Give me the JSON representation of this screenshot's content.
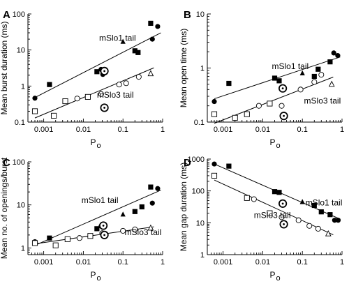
{
  "chart_data": [
    {
      "type": "scatter",
      "panel_letter": "A",
      "xlabel": "P",
      "xlabel_sub": "o",
      "ylabel": "Mean burst duration (ms)",
      "xscale": "log",
      "yscale": "log",
      "xlim": [
        0.0004,
        1
      ],
      "ylim": [
        0.1,
        100
      ],
      "xticks": [
        0.001,
        0.01,
        0.1,
        1
      ],
      "xticklabels": [
        "0.001",
        "0.01",
        "0.1",
        "1"
      ],
      "yticks": [
        0.1,
        1,
        10,
        100
      ],
      "yticklabels": [
        "0.1",
        "1",
        "10",
        "100"
      ],
      "series": [
        {
          "name": "mSlo1 tail",
          "fit_line": [
            [
              0.0006,
              0.48
            ],
            [
              0.9,
              30
            ]
          ],
          "points": [
            {
              "x": 0.0006,
              "y": 0.46,
              "marker": "filled-circle"
            },
            {
              "x": 0.0014,
              "y": 1.1,
              "marker": "filled-square"
            },
            {
              "x": 0.022,
              "y": 2.5,
              "marker": "filled-square"
            },
            {
              "x": 0.028,
              "y": 2.9,
              "marker": "filled-circle"
            },
            {
              "x": 0.031,
              "y": 2.1,
              "marker": "filled-circle"
            },
            {
              "x": 0.034,
              "y": 2.6,
              "marker": "circled-dot"
            },
            {
              "x": 0.1,
              "y": 17,
              "marker": "filled-triangle"
            },
            {
              "x": 0.2,
              "y": 9.5,
              "marker": "filled-square"
            },
            {
              "x": 0.24,
              "y": 8.5,
              "marker": "filled-square"
            },
            {
              "x": 0.5,
              "y": 55,
              "marker": "filled-square"
            },
            {
              "x": 0.55,
              "y": 20,
              "marker": "filled-circle"
            },
            {
              "x": 0.75,
              "y": 45,
              "marker": "filled-circle"
            }
          ]
        },
        {
          "name": "mSlo3 tail",
          "fit_line": [
            [
              0.0006,
              0.13
            ],
            [
              0.6,
              3.2
            ]
          ],
          "points": [
            {
              "x": 0.0006,
              "y": 0.2,
              "marker": "open-square"
            },
            {
              "x": 0.0018,
              "y": 0.15,
              "marker": "open-square"
            },
            {
              "x": 0.0035,
              "y": 0.38,
              "marker": "open-square"
            },
            {
              "x": 0.007,
              "y": 0.45,
              "marker": "open-circle"
            },
            {
              "x": 0.013,
              "y": 0.5,
              "marker": "open-square"
            },
            {
              "x": 0.028,
              "y": 0.6,
              "marker": "open-circle"
            },
            {
              "x": 0.034,
              "y": 0.25,
              "marker": "circled-dot"
            },
            {
              "x": 0.08,
              "y": 1.1,
              "marker": "open-circle"
            },
            {
              "x": 0.12,
              "y": 1.2,
              "marker": "open-circle"
            },
            {
              "x": 0.25,
              "y": 1.8,
              "marker": "open-circle"
            },
            {
              "x": 0.5,
              "y": 2.2,
              "marker": "open-triangle"
            }
          ]
        }
      ]
    },
    {
      "type": "scatter",
      "panel_letter": "B",
      "xlabel": "P",
      "xlabel_sub": "o",
      "ylabel": "Mean open time (ms)",
      "xscale": "log",
      "yscale": "log",
      "xlim": [
        0.0004,
        1
      ],
      "ylim": [
        0.1,
        10
      ],
      "xticks": [
        0.001,
        0.01,
        0.1,
        1
      ],
      "xticklabels": [
        "0.001",
        "0.01",
        "0.1",
        "1"
      ],
      "yticks": [
        0.1,
        1,
        10
      ],
      "yticklabels": [
        "0.1",
        "1",
        "10"
      ],
      "series": [
        {
          "name": "mSlo1 tail",
          "fit_line": [
            [
              0.0006,
              0.27
            ],
            [
              0.9,
              1.6
            ]
          ],
          "points": [
            {
              "x": 0.0006,
              "y": 0.24,
              "marker": "filled-circle"
            },
            {
              "x": 0.0014,
              "y": 0.52,
              "marker": "filled-square"
            },
            {
              "x": 0.02,
              "y": 0.65,
              "marker": "filled-square"
            },
            {
              "x": 0.026,
              "y": 0.58,
              "marker": "filled-square"
            },
            {
              "x": 0.032,
              "y": 0.42,
              "marker": "circled-dot"
            },
            {
              "x": 0.1,
              "y": 0.8,
              "marker": "filled-triangle"
            },
            {
              "x": 0.2,
              "y": 0.7,
              "marker": "filled-square"
            },
            {
              "x": 0.25,
              "y": 0.95,
              "marker": "filled-square"
            },
            {
              "x": 0.5,
              "y": 1.3,
              "marker": "filled-square"
            },
            {
              "x": 0.62,
              "y": 1.9,
              "marker": "filled-circle"
            },
            {
              "x": 0.78,
              "y": 1.7,
              "marker": "filled-circle"
            }
          ]
        },
        {
          "name": "mSlo3 tail",
          "fit_line": [
            [
              0.0006,
              0.095
            ],
            [
              0.6,
              0.68
            ]
          ],
          "points": [
            {
              "x": 0.0006,
              "y": 0.14,
              "marker": "open-square"
            },
            {
              "x": 0.002,
              "y": 0.12,
              "marker": "open-square"
            },
            {
              "x": 0.004,
              "y": 0.14,
              "marker": "open-square"
            },
            {
              "x": 0.008,
              "y": 0.2,
              "marker": "open-circle"
            },
            {
              "x": 0.015,
              "y": 0.22,
              "marker": "open-square"
            },
            {
              "x": 0.03,
              "y": 0.2,
              "marker": "open-circle"
            },
            {
              "x": 0.034,
              "y": 0.13,
              "marker": "circled-dot"
            },
            {
              "x": 0.09,
              "y": 0.4,
              "marker": "open-circle"
            },
            {
              "x": 0.2,
              "y": 0.55,
              "marker": "open-circle"
            },
            {
              "x": 0.3,
              "y": 0.75,
              "marker": "open-circle"
            },
            {
              "x": 0.55,
              "y": 0.5,
              "marker": "open-triangle"
            }
          ]
        }
      ]
    },
    {
      "type": "scatter",
      "panel_letter": "C",
      "xlabel": "P",
      "xlabel_sub": "o",
      "ylabel": "Mean no. of openings/burst",
      "xscale": "log",
      "yscale": "log",
      "xlim": [
        0.0004,
        1
      ],
      "ylim": [
        0.7,
        100
      ],
      "xticks": [
        0.001,
        0.01,
        0.1,
        1
      ],
      "xticklabels": [
        "0.001",
        "0.01",
        "0.1",
        "1"
      ],
      "yticks": [
        1,
        10,
        100
      ],
      "yticklabels": [
        "1",
        "10",
        "100"
      ],
      "series": [
        {
          "name": "mSlo1 tail",
          "fit_line": [
            [
              0.0006,
              1.15
            ],
            [
              0.9,
              22
            ]
          ],
          "points": [
            {
              "x": 0.0006,
              "y": 1.4,
              "marker": "filled-circle"
            },
            {
              "x": 0.0014,
              "y": 1.7,
              "marker": "filled-square"
            },
            {
              "x": 0.022,
              "y": 2.8,
              "marker": "filled-square"
            },
            {
              "x": 0.028,
              "y": 3.2,
              "marker": "filled-circle"
            },
            {
              "x": 0.032,
              "y": 3.3,
              "marker": "circled-dot"
            },
            {
              "x": 0.1,
              "y": 6,
              "marker": "filled-triangle"
            },
            {
              "x": 0.2,
              "y": 7,
              "marker": "filled-square"
            },
            {
              "x": 0.3,
              "y": 9,
              "marker": "filled-square"
            },
            {
              "x": 0.5,
              "y": 26,
              "marker": "filled-square"
            },
            {
              "x": 0.55,
              "y": 11,
              "marker": "filled-circle"
            },
            {
              "x": 0.75,
              "y": 24,
              "marker": "filled-circle"
            }
          ]
        },
        {
          "name": "mSlo3 tail",
          "fit_line": [
            [
              0.0006,
              1.25
            ],
            [
              0.6,
              3.1
            ]
          ],
          "points": [
            {
              "x": 0.0006,
              "y": 1.3,
              "marker": "open-square"
            },
            {
              "x": 0.002,
              "y": 1.15,
              "marker": "open-square"
            },
            {
              "x": 0.004,
              "y": 1.6,
              "marker": "open-square"
            },
            {
              "x": 0.008,
              "y": 1.7,
              "marker": "open-circle"
            },
            {
              "x": 0.015,
              "y": 1.9,
              "marker": "open-square"
            },
            {
              "x": 0.03,
              "y": 2.2,
              "marker": "open-circle"
            },
            {
              "x": 0.034,
              "y": 2.0,
              "marker": "circled-dot"
            },
            {
              "x": 0.1,
              "y": 2.5,
              "marker": "open-circle"
            },
            {
              "x": 0.2,
              "y": 2.7,
              "marker": "open-circle"
            },
            {
              "x": 0.5,
              "y": 2.9,
              "marker": "open-triangle"
            }
          ]
        }
      ]
    },
    {
      "type": "scatter",
      "panel_letter": "D",
      "xlabel": "P",
      "xlabel_sub": "o",
      "ylabel": "Mean gap duration (ms)",
      "xscale": "log",
      "yscale": "log",
      "xlim": [
        0.0004,
        1
      ],
      "ylim": [
        1,
        1000
      ],
      "xticks": [
        0.001,
        0.01,
        0.1,
        1
      ],
      "xticklabels": [
        "0.001",
        "0.01",
        "0.1",
        "1"
      ],
      "yticks": [
        1,
        10,
        100,
        1000
      ],
      "yticklabels": [
        "1",
        "10",
        "100",
        "1000"
      ],
      "series": [
        {
          "name": "mSlo1 tail",
          "fit_line": [
            [
              0.0006,
              700
            ],
            [
              0.9,
              13
            ]
          ],
          "points": [
            {
              "x": 0.0006,
              "y": 700,
              "marker": "filled-circle"
            },
            {
              "x": 0.0014,
              "y": 600,
              "marker": "filled-square"
            },
            {
              "x": 0.02,
              "y": 95,
              "marker": "filled-square"
            },
            {
              "x": 0.026,
              "y": 90,
              "marker": "filled-square"
            },
            {
              "x": 0.032,
              "y": 40,
              "marker": "circled-dot"
            },
            {
              "x": 0.1,
              "y": 45,
              "marker": "filled-triangle"
            },
            {
              "x": 0.2,
              "y": 35,
              "marker": "filled-square"
            },
            {
              "x": 0.3,
              "y": 22,
              "marker": "filled-square"
            },
            {
              "x": 0.5,
              "y": 18,
              "marker": "filled-square"
            },
            {
              "x": 0.65,
              "y": 12,
              "marker": "filled-circle"
            },
            {
              "x": 0.8,
              "y": 12,
              "marker": "filled-circle"
            }
          ]
        },
        {
          "name": "mSlo3 tail",
          "fit_line": [
            [
              0.0006,
              220
            ],
            [
              0.6,
              4.2
            ]
          ],
          "points": [
            {
              "x": 0.0006,
              "y": 300,
              "marker": "open-square"
            },
            {
              "x": 0.004,
              "y": 60,
              "marker": "open-square"
            },
            {
              "x": 0.006,
              "y": 55,
              "marker": "open-circle"
            },
            {
              "x": 0.015,
              "y": 20,
              "marker": "open-square"
            },
            {
              "x": 0.03,
              "y": 15,
              "marker": "open-circle"
            },
            {
              "x": 0.034,
              "y": 9,
              "marker": "circled-dot"
            },
            {
              "x": 0.08,
              "y": 12,
              "marker": "open-circle"
            },
            {
              "x": 0.15,
              "y": 8,
              "marker": "open-circle"
            },
            {
              "x": 0.25,
              "y": 6.5,
              "marker": "open-circle"
            },
            {
              "x": 0.45,
              "y": 4.5,
              "marker": "open-triangle"
            }
          ]
        }
      ]
    }
  ]
}
